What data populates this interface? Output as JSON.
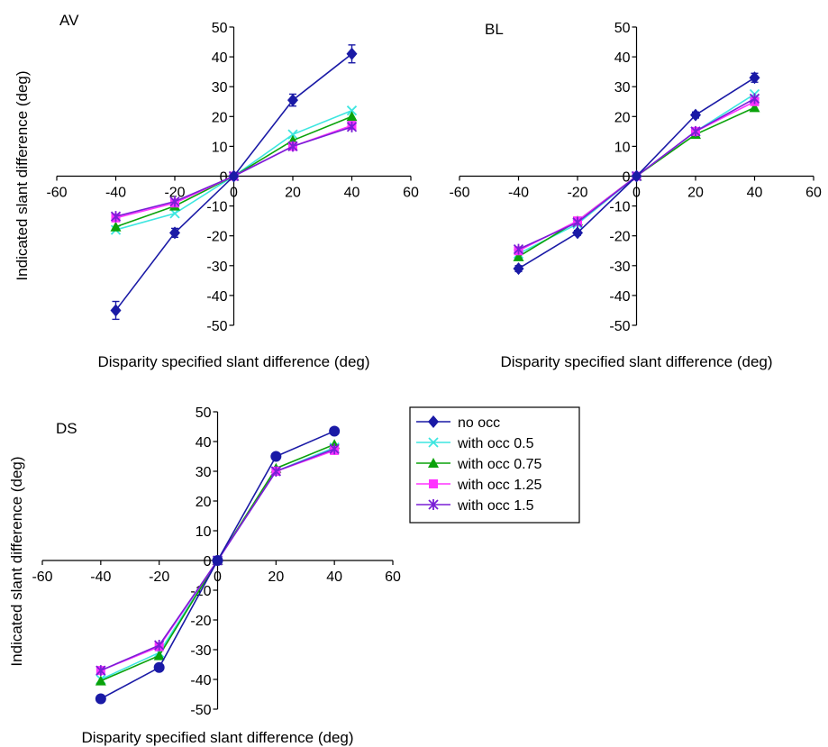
{
  "chart_data": [
    {
      "type": "line",
      "panel": "AV",
      "x": [
        -40,
        -20,
        0,
        20,
        40
      ],
      "xlabel": "Disparity specified slant difference (deg)",
      "ylabel": "Indicated slant difference (deg)",
      "xlim": [
        -60,
        60
      ],
      "ylim": [
        -50,
        50
      ],
      "xticks": [
        -60,
        -40,
        -20,
        0,
        20,
        40,
        60
      ],
      "yticks": [
        -50,
        -40,
        -30,
        -20,
        -10,
        0,
        10,
        20,
        30,
        40,
        50
      ],
      "grid": false,
      "series": [
        {
          "name": "no occ",
          "values": [
            -45,
            -19,
            0,
            25.5,
            41
          ],
          "errors": [
            3,
            1.5,
            0.5,
            2,
            3
          ]
        },
        {
          "name": "with occ 0.5",
          "values": [
            -18,
            -12.5,
            0,
            14,
            22
          ]
        },
        {
          "name": "with occ 0.75",
          "values": [
            -17,
            -10,
            0,
            12,
            20
          ]
        },
        {
          "name": "with occ 1.25",
          "values": [
            -14,
            -9,
            0,
            10,
            17
          ]
        },
        {
          "name": "with occ 1.5",
          "values": [
            -13.5,
            -8.5,
            0,
            10,
            16.5
          ]
        }
      ]
    },
    {
      "type": "line",
      "panel": "BL",
      "x": [
        -40,
        -20,
        0,
        20,
        40
      ],
      "xlabel": "Disparity specified slant difference (deg)",
      "ylabel": "",
      "xlim": [
        -60,
        60
      ],
      "ylim": [
        -50,
        50
      ],
      "xticks": [
        -60,
        -40,
        -20,
        0,
        20,
        40,
        60
      ],
      "yticks": [
        -50,
        -40,
        -30,
        -20,
        -10,
        0,
        10,
        20,
        30,
        40,
        50
      ],
      "grid": false,
      "series": [
        {
          "name": "no occ",
          "values": [
            -31,
            -19,
            0,
            20.5,
            33
          ],
          "errors": [
            1,
            0.8,
            0.5,
            1,
            1.5
          ]
        },
        {
          "name": "with occ 0.5",
          "values": [
            -26,
            -16,
            0,
            15,
            27.5
          ]
        },
        {
          "name": "with occ 0.75",
          "values": [
            -27,
            -15,
            0,
            14,
            23
          ]
        },
        {
          "name": "with occ 1.25",
          "values": [
            -25,
            -15,
            0,
            15,
            25
          ]
        },
        {
          "name": "with occ 1.5",
          "values": [
            -24.5,
            -15.5,
            0,
            15,
            26
          ]
        }
      ]
    },
    {
      "type": "line",
      "panel": "DS",
      "x": [
        -40,
        -20,
        0,
        20,
        40
      ],
      "xlabel": "Disparity specified slant difference (deg)",
      "ylabel": "Indicated  slant difference (deg)",
      "xlim": [
        -60,
        60
      ],
      "ylim": [
        -50,
        50
      ],
      "xticks": [
        -60,
        -40,
        -20,
        0,
        20,
        40,
        60
      ],
      "yticks": [
        -50,
        -40,
        -30,
        -20,
        -10,
        0,
        10,
        20,
        30,
        40,
        50
      ],
      "grid": false,
      "series": [
        {
          "name": "no occ",
          "values": [
            -46.5,
            -36,
            0,
            35,
            43.5
          ],
          "errors": [
            0.8,
            0.8,
            0.5,
            1,
            1
          ]
        },
        {
          "name": "with occ 0.5",
          "values": [
            -40,
            -31,
            0,
            30,
            38
          ]
        },
        {
          "name": "with occ 0.75",
          "values": [
            -40.5,
            -32,
            0,
            31,
            39
          ]
        },
        {
          "name": "with occ 1.25",
          "values": [
            -37,
            -29,
            0,
            30,
            37
          ]
        },
        {
          "name": "with occ 1.5",
          "values": [
            -37,
            -28.5,
            0,
            30,
            37.5
          ]
        }
      ]
    }
  ],
  "legend": {
    "placement": "right of DS panel",
    "items": [
      {
        "label": "no occ",
        "color": "#1a1aa6",
        "marker": "diamond"
      },
      {
        "label": "with occ 0.5",
        "color": "#3de6e0",
        "marker": "x"
      },
      {
        "label": "with occ 0.75",
        "color": "#0aa20a",
        "marker": "triangle"
      },
      {
        "label": "with occ 1.25",
        "color": "#ff33ff",
        "marker": "square"
      },
      {
        "label": "with occ 1.5",
        "color": "#7a1fd6",
        "marker": "star"
      }
    ]
  }
}
